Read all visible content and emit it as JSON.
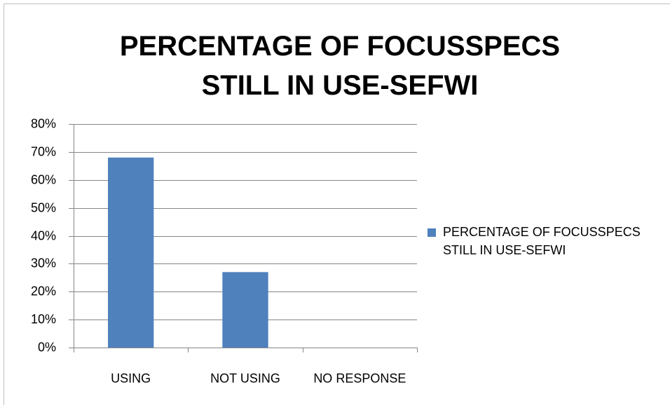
{
  "chart_data": {
    "type": "bar",
    "title": "PERCENTAGE OF FOCUSSPECS STILL IN USE-SEFWI",
    "categories": [
      "USING",
      "NOT USING",
      "NO RESPONSE"
    ],
    "series": [
      {
        "name": "PERCENTAGE OF FOCUSSPECS STILL IN USE-SEFWI",
        "color": "#4f81bd",
        "values": [
          68,
          27,
          0
        ]
      }
    ],
    "ylim": [
      0,
      80
    ],
    "yticks": [
      {
        "value": 0,
        "label": "0%"
      },
      {
        "value": 10,
        "label": "10%"
      },
      {
        "value": 20,
        "label": "20%"
      },
      {
        "value": 30,
        "label": "30%"
      },
      {
        "value": 40,
        "label": "40%"
      },
      {
        "value": 50,
        "label": "50%"
      },
      {
        "value": 60,
        "label": "60%"
      },
      {
        "value": 70,
        "label": "70%"
      },
      {
        "value": 80,
        "label": "80%"
      }
    ],
    "grid": true,
    "legend": "right"
  }
}
